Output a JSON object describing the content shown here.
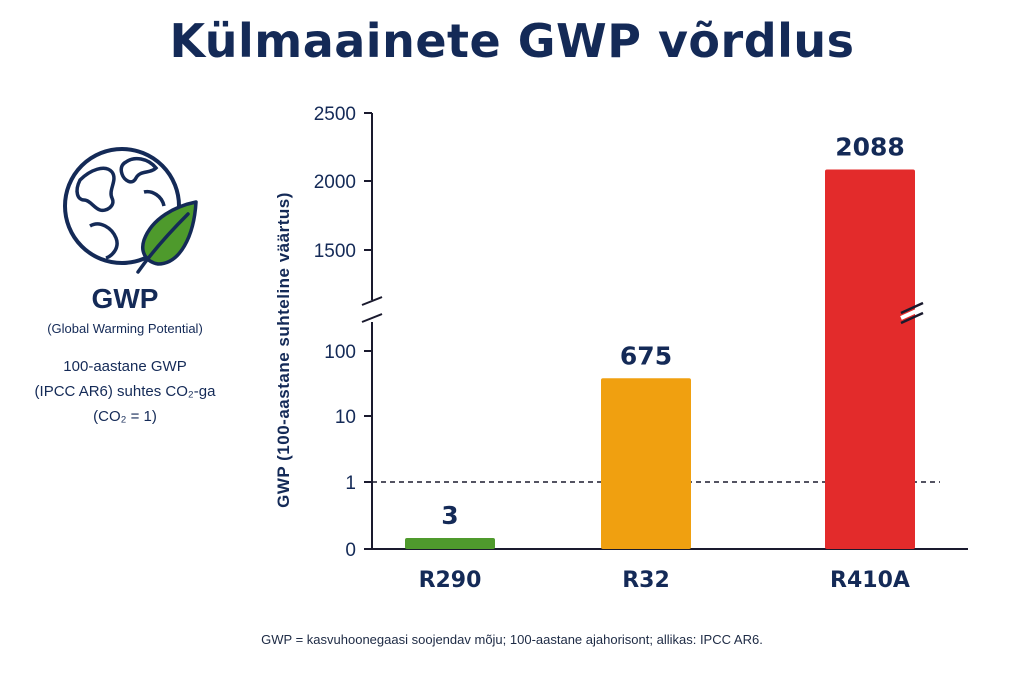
{
  "title": "Külmaainete GWP võrdlus",
  "side_panel": {
    "label": "GWP",
    "full_name": "(Global Warming Potential)",
    "desc_lines": [
      "100-aastane GWP",
      "(IPCC AR6) suhtes CO₂-ga",
      "(CO₂ = 1)"
    ],
    "icon": "globe-leaf-icon"
  },
  "footnote": "GWP = kasvuhoonegaasi soojendav mõju; 100-aastane ajahorisont; allikas: IPCC AR6.",
  "colors": {
    "title": "#142a57",
    "R290": "#4f9a2d",
    "R32": "#f0a010",
    "R410A": "#e32b2b",
    "axis": "#1a1a2e"
  },
  "chart_data": {
    "type": "bar",
    "title": "Külmaainete GWP võrdlus",
    "ylabel": "GWP (100-aastane suhteline väärtus)",
    "xlabel": "",
    "categories": [
      "R290",
      "R32",
      "R410A"
    ],
    "values": [
      3,
      675,
      2088
    ],
    "data_labels": [
      "3",
      "675",
      "2088"
    ],
    "bar_colors": [
      "#4f9a2d",
      "#f0a010",
      "#e32b2b"
    ],
    "y_scale": "broken axis: log-like lower segment (0–100), linear upper segment (1500–2500)",
    "lower_ticks": [
      "0",
      "1",
      "10",
      "100"
    ],
    "upper_ticks": [
      "1500",
      "2000",
      "2500"
    ],
    "reference_line": 1,
    "reference_line_style": "dashed",
    "axis_break": true,
    "grid": false,
    "legend": "none"
  }
}
